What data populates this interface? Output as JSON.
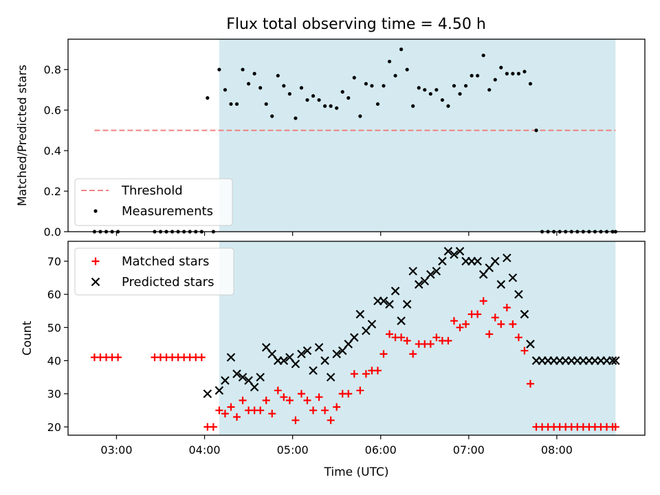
{
  "chart_data": [
    {
      "type": "scatter",
      "title": "Flux total observing time = 4.50 h",
      "xlabel": "",
      "ylabel": "Matched/Predicted stars",
      "xlim": [
        "02:27",
        "09:00"
      ],
      "ylim": [
        0,
        0.95
      ],
      "yticks": [
        "0.0",
        "0.2",
        "0.4",
        "0.6",
        "0.8"
      ],
      "ytick_values": [
        0,
        0.2,
        0.4,
        0.6,
        0.8
      ],
      "xtick_values": [
        "03:00",
        "04:00",
        "05:00",
        "06:00",
        "07:00",
        "08:00"
      ],
      "shaded_span": [
        "04:10",
        "08:40"
      ],
      "shade_color": "#d4eaf0",
      "grid": false,
      "legend_position": "lower-left",
      "series": [
        {
          "name": "Threshold",
          "kind": "dashed-line",
          "color": "#f08080",
          "x": [
            "02:45",
            "08:40"
          ],
          "y": [
            0.5,
            0.5
          ]
        },
        {
          "name": "Measurements",
          "kind": "dot",
          "color": "#000000",
          "x": [
            "02:45",
            "02:49",
            "02:53",
            "02:57",
            "03:01",
            "03:26",
            "03:30",
            "03:34",
            "03:38",
            "03:42",
            "03:46",
            "03:50",
            "03:54",
            "03:58",
            "04:02",
            "04:06",
            "04:10",
            "04:14",
            "04:18",
            "04:22",
            "04:26",
            "04:30",
            "04:34",
            "04:38",
            "04:42",
            "04:46",
            "04:50",
            "04:54",
            "04:58",
            "05:02",
            "05:06",
            "05:10",
            "05:14",
            "05:18",
            "05:22",
            "05:26",
            "05:30",
            "05:34",
            "05:38",
            "05:42",
            "05:46",
            "05:50",
            "05:54",
            "05:58",
            "06:02",
            "06:06",
            "06:10",
            "06:14",
            "06:18",
            "06:22",
            "06:26",
            "06:30",
            "06:34",
            "06:38",
            "06:42",
            "06:46",
            "06:50",
            "06:54",
            "06:58",
            "07:02",
            "07:06",
            "07:10",
            "07:14",
            "07:18",
            "07:22",
            "07:26",
            "07:30",
            "07:34",
            "07:38",
            "07:42",
            "07:46",
            "07:50",
            "07:54",
            "07:58",
            "08:02",
            "08:06",
            "08:10",
            "08:14",
            "08:18",
            "08:22",
            "08:26",
            "08:30",
            "08:34",
            "08:38",
            "08:40"
          ],
          "y": [
            0,
            0,
            0,
            0,
            0,
            0,
            0,
            0,
            0,
            0,
            0,
            0,
            0,
            0,
            0.66,
            0,
            0.8,
            0.7,
            0.63,
            0.63,
            0.8,
            0.73,
            0.78,
            0.71,
            0.63,
            0.57,
            0.77,
            0.72,
            0.68,
            0.56,
            0.71,
            0.65,
            0.67,
            0.65,
            0.62,
            0.62,
            0.61,
            0.69,
            0.66,
            0.76,
            0.57,
            0.73,
            0.72,
            0.63,
            0.72,
            0.84,
            0.77,
            0.9,
            0.8,
            0.62,
            0.71,
            0.7,
            0.68,
            0.7,
            0.65,
            0.62,
            0.72,
            0.68,
            0.72,
            0.77,
            0.77,
            0.87,
            0.7,
            0.75,
            0.81,
            0.78,
            0.78,
            0.78,
            0.79,
            0.73,
            0.5,
            0,
            0,
            0,
            0,
            0,
            0,
            0,
            0,
            0,
            0,
            0,
            0,
            0,
            0
          ]
        }
      ]
    },
    {
      "type": "scatter",
      "title": "",
      "xlabel": "Time (UTC)",
      "ylabel": "Count",
      "xlim": [
        "02:27",
        "09:00"
      ],
      "ylim": [
        17.5,
        76
      ],
      "yticks": [
        "20",
        "30",
        "40",
        "50",
        "60",
        "70"
      ],
      "ytick_values": [
        20,
        30,
        40,
        50,
        60,
        70
      ],
      "xticks": [
        "03:00",
        "04:00",
        "05:00",
        "06:00",
        "07:00",
        "08:00"
      ],
      "shaded_span": [
        "04:10",
        "08:40"
      ],
      "shade_color": "#d4eaf0",
      "grid": false,
      "legend_position": "upper-left",
      "series": [
        {
          "name": "Matched stars",
          "marker": "+",
          "color": "#ff0000",
          "x": [
            "02:45",
            "02:49",
            "02:53",
            "02:57",
            "03:01",
            "03:26",
            "03:30",
            "03:34",
            "03:38",
            "03:42",
            "03:46",
            "03:50",
            "03:54",
            "03:58",
            "04:02",
            "04:06",
            "04:10",
            "04:14",
            "04:18",
            "04:22",
            "04:26",
            "04:30",
            "04:34",
            "04:38",
            "04:42",
            "04:46",
            "04:50",
            "04:54",
            "04:58",
            "05:02",
            "05:06",
            "05:10",
            "05:14",
            "05:18",
            "05:22",
            "05:26",
            "05:30",
            "05:34",
            "05:38",
            "05:42",
            "05:46",
            "05:50",
            "05:54",
            "05:58",
            "06:02",
            "06:06",
            "06:10",
            "06:14",
            "06:18",
            "06:22",
            "06:26",
            "06:30",
            "06:34",
            "06:38",
            "06:42",
            "06:46",
            "06:50",
            "06:54",
            "06:58",
            "07:02",
            "07:06",
            "07:10",
            "07:14",
            "07:18",
            "07:22",
            "07:26",
            "07:30",
            "07:34",
            "07:38",
            "07:42",
            "07:46",
            "07:50",
            "07:54",
            "07:58",
            "08:02",
            "08:06",
            "08:10",
            "08:14",
            "08:18",
            "08:22",
            "08:26",
            "08:30",
            "08:34",
            "08:38",
            "08:40"
          ],
          "y": [
            41,
            41,
            41,
            41,
            41,
            41,
            41,
            41,
            41,
            41,
            41,
            41,
            41,
            41,
            20,
            20,
            25,
            24,
            26,
            23,
            28,
            25,
            25,
            25,
            28,
            24,
            31,
            29,
            28,
            22,
            30,
            28,
            25,
            29,
            25,
            22,
            26,
            30,
            30,
            36,
            31,
            36,
            37,
            37,
            42,
            48,
            47,
            47,
            46,
            42,
            45,
            45,
            45,
            47,
            46,
            46,
            52,
            50,
            51,
            54,
            54,
            58,
            48,
            53,
            51,
            56,
            51,
            47,
            43,
            33,
            20,
            20,
            20,
            20,
            20,
            20,
            20,
            20,
            20,
            20,
            20,
            20,
            20,
            20,
            20
          ]
        },
        {
          "name": "Predicted stars",
          "marker": "x",
          "color": "#000000",
          "x": [
            "04:02",
            "04:10",
            "04:14",
            "04:18",
            "04:22",
            "04:26",
            "04:30",
            "04:34",
            "04:38",
            "04:42",
            "04:46",
            "04:50",
            "04:54",
            "04:58",
            "05:02",
            "05:06",
            "05:10",
            "05:14",
            "05:18",
            "05:22",
            "05:26",
            "05:30",
            "05:34",
            "05:38",
            "05:42",
            "05:46",
            "05:50",
            "05:54",
            "05:58",
            "06:02",
            "06:06",
            "06:10",
            "06:14",
            "06:18",
            "06:22",
            "06:26",
            "06:30",
            "06:34",
            "06:38",
            "06:42",
            "06:46",
            "06:50",
            "06:54",
            "06:58",
            "07:02",
            "07:06",
            "07:10",
            "07:14",
            "07:18",
            "07:22",
            "07:26",
            "07:30",
            "07:34",
            "07:38",
            "07:42",
            "07:46",
            "07:50",
            "07:54",
            "07:58",
            "08:02",
            "08:06",
            "08:10",
            "08:14",
            "08:18",
            "08:22",
            "08:26",
            "08:30",
            "08:34",
            "08:38",
            "08:40"
          ],
          "y": [
            30,
            31,
            34,
            41,
            36,
            35,
            34,
            32,
            35,
            44,
            42,
            40,
            40,
            41,
            39,
            42,
            43,
            37,
            44,
            40,
            35,
            42,
            43,
            45,
            47,
            54,
            49,
            51,
            58,
            58,
            57,
            61,
            52,
            57,
            67,
            63,
            64,
            66,
            67,
            70,
            73,
            72,
            73,
            70,
            70,
            70,
            66,
            68,
            70,
            63,
            71,
            65,
            60,
            54,
            45,
            40,
            40,
            40,
            40,
            40,
            40,
            40,
            40,
            40,
            40,
            40,
            40,
            40,
            40,
            40
          ]
        }
      ]
    }
  ]
}
